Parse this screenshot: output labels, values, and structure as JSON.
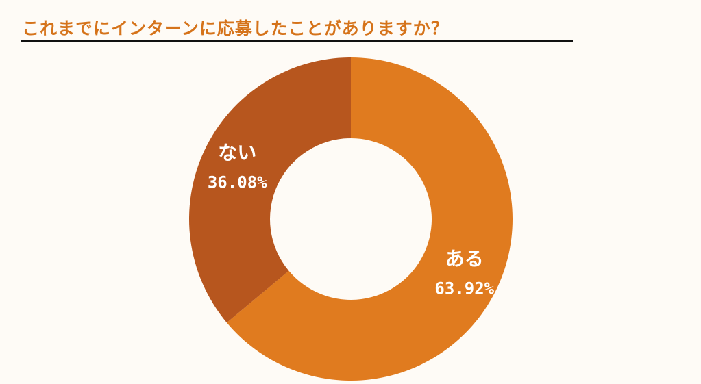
{
  "chart_data": {
    "type": "pie",
    "title": "これまでにインターンに応募したことがありますか？",
    "categories": [
      "ある",
      "ない"
    ],
    "values": [
      63.92,
      36.08
    ],
    "value_labels": [
      "63.92%",
      "36.08%"
    ],
    "colors": [
      "#e07b1f",
      "#b7561e"
    ],
    "legend": "none"
  }
}
